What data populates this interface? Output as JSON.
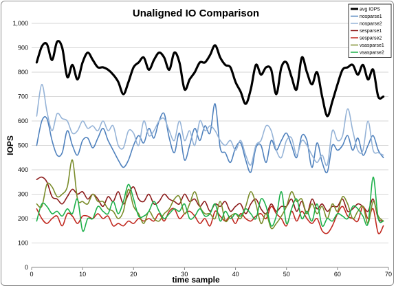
{
  "chart_data": {
    "type": "line",
    "title": "Unaligned IO Comparison",
    "xlabel": "time sample",
    "ylabel": "IOPS",
    "xlim": [
      0,
      70
    ],
    "ylim": [
      0,
      1000
    ],
    "x_ticks": [
      0,
      10,
      20,
      30,
      40,
      50,
      60,
      70
    ],
    "y_ticks": [
      0,
      100,
      200,
      300,
      400,
      500,
      600,
      700,
      800,
      900,
      1000
    ],
    "x_tick_labels": [
      "0",
      "10",
      "20",
      "30",
      "40",
      "50",
      "60",
      "70"
    ],
    "y_tick_labels": [
      "0",
      "100",
      "200",
      "300",
      "400",
      "500",
      "600",
      "700",
      "800",
      "900",
      "1,000"
    ],
    "grid": "horizontal",
    "legend_position": "top-right",
    "x": [
      1,
      2,
      3,
      4,
      5,
      6,
      7,
      8,
      9,
      10,
      11,
      12,
      13,
      14,
      15,
      16,
      17,
      18,
      19,
      20,
      21,
      22,
      23,
      24,
      25,
      26,
      27,
      28,
      29,
      30,
      31,
      32,
      33,
      34,
      35,
      36,
      37,
      38,
      39,
      40,
      41,
      42,
      43,
      44,
      45,
      46,
      47,
      48,
      49,
      50,
      51,
      52,
      53,
      54,
      55,
      56,
      57,
      58,
      59,
      60,
      61,
      62,
      63,
      64,
      65,
      66,
      67,
      68,
      69
    ],
    "series": [
      {
        "name": "avg IOPS",
        "color": "#000000",
        "width": 3.2,
        "values": [
          840,
          905,
          915,
          850,
          925,
          900,
          780,
          830,
          770,
          840,
          880,
          850,
          820,
          820,
          810,
          790,
          760,
          710,
          760,
          820,
          840,
          860,
          810,
          850,
          880,
          860,
          810,
          880,
          840,
          730,
          770,
          800,
          840,
          840,
          870,
          910,
          860,
          830,
          820,
          760,
          720,
          670,
          730,
          830,
          790,
          820,
          810,
          710,
          820,
          840,
          780,
          730,
          860,
          800,
          750,
          800,
          700,
          620,
          680,
          750,
          810,
          820,
          830,
          790,
          830,
          770,
          810,
          700,
          700
        ]
      },
      {
        "name": "nosparse1",
        "color": "#4f81bd",
        "width": 1.6,
        "values": [
          500,
          600,
          610,
          520,
          460,
          470,
          560,
          500,
          460,
          520,
          530,
          490,
          530,
          570,
          520,
          480,
          440,
          410,
          440,
          500,
          540,
          510,
          570,
          530,
          600,
          630,
          530,
          470,
          550,
          440,
          500,
          570,
          520,
          580,
          550,
          670,
          490,
          470,
          430,
          490,
          510,
          440,
          390,
          490,
          500,
          430,
          520,
          480,
          520,
          550,
          500,
          450,
          540,
          520,
          410,
          510,
          430,
          390,
          500,
          480,
          500,
          540,
          480,
          530,
          460,
          500,
          540,
          480,
          450
        ]
      },
      {
        "name": "nosparse2",
        "color": "#95b3d7",
        "width": 1.6,
        "values": [
          620,
          750,
          640,
          560,
          630,
          610,
          600,
          550,
          560,
          600,
          570,
          580,
          560,
          600,
          560,
          580,
          500,
          490,
          560,
          550,
          500,
          600,
          540,
          560,
          600,
          610,
          560,
          520,
          600,
          520,
          560,
          500,
          600,
          560,
          580,
          560,
          520,
          500,
          520,
          480,
          520,
          460,
          420,
          500,
          520,
          580,
          560,
          480,
          450,
          520,
          530,
          460,
          520,
          500,
          460,
          430,
          460,
          420,
          560,
          520,
          540,
          650,
          560,
          480,
          480,
          600,
          480,
          470,
          460
        ]
      },
      {
        "name": "sesparse1",
        "color": "#8b1a1a",
        "width": 1.6,
        "values": [
          360,
          370,
          350,
          290,
          280,
          260,
          290,
          320,
          300,
          310,
          280,
          300,
          280,
          250,
          290,
          270,
          310,
          260,
          300,
          330,
          280,
          270,
          300,
          260,
          270,
          300,
          280,
          270,
          260,
          300,
          270,
          280,
          250,
          270,
          230,
          260,
          250,
          270,
          230,
          250,
          260,
          220,
          260,
          280,
          240,
          220,
          260,
          230,
          250,
          250,
          280,
          230,
          270,
          220,
          280,
          240,
          260,
          230,
          250,
          250,
          280,
          230,
          240,
          260,
          250,
          230,
          280,
          200,
          190
        ]
      },
      {
        "name": "sesparse2",
        "color": "#c0271e",
        "width": 1.6,
        "values": [
          240,
          200,
          180,
          200,
          210,
          170,
          220,
          210,
          180,
          210,
          210,
          200,
          220,
          200,
          210,
          170,
          180,
          170,
          190,
          180,
          200,
          190,
          200,
          190,
          220,
          190,
          230,
          240,
          200,
          220,
          230,
          210,
          180,
          200,
          170,
          230,
          210,
          190,
          210,
          180,
          220,
          200,
          190,
          210,
          220,
          200,
          250,
          220,
          200,
          170,
          230,
          190,
          230,
          200,
          180,
          200,
          150,
          140,
          170,
          220,
          250,
          210,
          200,
          190,
          250,
          200,
          240,
          140,
          170
        ]
      },
      {
        "name": "vsasparse1",
        "color": "#7a8c2a",
        "width": 1.6,
        "values": [
          260,
          250,
          340,
          330,
          290,
          300,
          330,
          440,
          280,
          270,
          260,
          300,
          270,
          270,
          240,
          230,
          200,
          230,
          320,
          250,
          220,
          180,
          230,
          200,
          190,
          220,
          240,
          280,
          290,
          220,
          260,
          310,
          250,
          220,
          220,
          200,
          270,
          190,
          210,
          220,
          200,
          250,
          310,
          260,
          180,
          220,
          160,
          180,
          210,
          250,
          310,
          270,
          280,
          220,
          260,
          220,
          250,
          200,
          260,
          230,
          290,
          260,
          200,
          230,
          250,
          180,
          270,
          210,
          190
        ]
      },
      {
        "name": "vsasparse2",
        "color": "#1db04a",
        "width": 1.6,
        "values": [
          190,
          260,
          250,
          220,
          230,
          210,
          240,
          220,
          280,
          150,
          200,
          200,
          250,
          230,
          220,
          270,
          220,
          270,
          340,
          280,
          210,
          210,
          230,
          270,
          230,
          200,
          220,
          240,
          230,
          260,
          200,
          210,
          240,
          210,
          220,
          260,
          190,
          230,
          200,
          220,
          210,
          240,
          220,
          200,
          280,
          250,
          170,
          210,
          310,
          180,
          240,
          280,
          200,
          230,
          190,
          260,
          170,
          200,
          190,
          220,
          210,
          200,
          250,
          240,
          210,
          180,
          370,
          200,
          190
        ]
      }
    ]
  }
}
